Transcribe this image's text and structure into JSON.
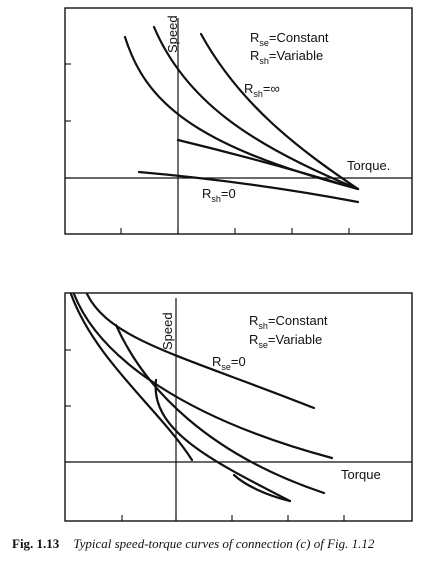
{
  "chart_data": [
    {
      "type": "line",
      "x_axis_label": "Torque",
      "y_axis_label": "Speed",
      "annotations": [
        "R_se=Constant",
        "R_sh=Variable",
        "R_sh=∞",
        "R_sh=0"
      ],
      "series": [
        {
          "name": "",
          "x": [
            -0.9,
            -0.75,
            -0.55,
            -0.35,
            -0.15,
            0.05,
            0.25,
            0.45,
            0.65,
            0.85
          ],
          "y": [
            1.15,
            0.95,
            0.75,
            0.58,
            0.44,
            0.33,
            0.24,
            0.16,
            0.08,
            0.01
          ]
        },
        {
          "name": "",
          "x": [
            -0.4,
            -0.25,
            -0.05,
            0.15,
            0.35,
            0.55,
            0.75,
            0.9
          ],
          "y": [
            1.3,
            1.05,
            0.82,
            0.62,
            0.45,
            0.28,
            0.14,
            0.03
          ]
        },
        {
          "name": "",
          "x": [
            0.25,
            0.35,
            0.45,
            0.55,
            0.65,
            0.75,
            0.85,
            0.9
          ],
          "y": [
            1.22,
            1.0,
            0.78,
            0.58,
            0.4,
            0.24,
            0.1,
            0.04
          ]
        },
        {
          "name": "",
          "x": [
            0.0,
            0.2,
            0.4,
            0.6,
            0.8,
            0.88
          ],
          "y": [
            0.42,
            0.32,
            0.22,
            0.13,
            0.06,
            0.03
          ]
        },
        {
          "name": "",
          "x": [
            -0.65,
            -0.3,
            0.0,
            0.3,
            0.6,
            0.88
          ],
          "y": [
            0.01,
            -0.03,
            -0.06,
            -0.1,
            -0.16,
            -0.22
          ]
        }
      ]
    },
    {
      "type": "line",
      "x_axis_label": "Torque",
      "y_axis_label": "Speed",
      "annotations": [
        "R_sh=Constant",
        "R_se=Variable",
        "R_se=0"
      ],
      "series": [
        {
          "name": "",
          "x": [
            -0.95,
            -0.75,
            -0.5,
            -0.25,
            0.0,
            0.3,
            0.62
          ],
          "y": [
            1.45,
            1.2,
            0.98,
            0.87,
            0.8,
            0.72,
            0.62
          ]
        },
        {
          "name": "",
          "x": [
            -1.05,
            -0.9,
            -0.7,
            -0.45,
            -0.15,
            0.2,
            0.5,
            0.78
          ],
          "y": [
            1.55,
            1.28,
            1.03,
            0.8,
            0.63,
            0.47,
            0.33,
            0.19
          ]
        },
        {
          "name": "",
          "x": [
            -0.55,
            -0.35,
            -0.15,
            0.1,
            0.35,
            0.6,
            0.8
          ],
          "y": [
            1.0,
            0.8,
            0.62,
            0.44,
            0.25,
            0.08,
            -0.08
          ]
        },
        {
          "name": "",
          "x": [
            -1.2,
            -1.0,
            -0.8,
            -0.6,
            -0.4,
            -0.25,
            -0.15
          ],
          "y": [
            1.55,
            1.35,
            1.08,
            0.78,
            0.48,
            0.2,
            -0.01
          ]
        },
        {
          "name": "",
          "x": [
            -0.35,
            -0.25,
            -0.15,
            0.0,
            0.15,
            0.3,
            0.45,
            0.6
          ],
          "y": [
            0.72,
            0.5,
            0.33,
            0.2,
            0.08,
            -0.02,
            -0.12,
            -0.2
          ]
        },
        {
          "name": "",
          "x": [
            0.1,
            0.25,
            0.45
          ],
          "y": [
            -0.08,
            -0.18,
            -0.33
          ]
        }
      ]
    }
  ],
  "labels": {
    "top": {
      "speed": "Speed",
      "torque": "Torque.",
      "line1": "R",
      "line1_sub": "se",
      "line1_rest": "=Constant",
      "line2": "R",
      "line2_sub": "sh",
      "line2_rest": "=Variable",
      "line3": "R",
      "line3_sub": "sh",
      "line3_rest": "=∞",
      "line4": "R",
      "line4_sub": "sh",
      "line4_rest": "=0"
    },
    "bottom": {
      "speed": "Speed",
      "torque": "Torque",
      "line1": "R",
      "line1_sub": "sh",
      "line1_rest": "=Constant",
      "line2": "R",
      "line2_sub": "se",
      "line2_rest": "=Variable",
      "line3": "R",
      "line3_sub": "se",
      "line3_rest": "=0"
    }
  },
  "caption": {
    "number": "Fig. 1.13",
    "text": "Typical speed-torque curves of connection (c) of Fig. 1.12"
  }
}
